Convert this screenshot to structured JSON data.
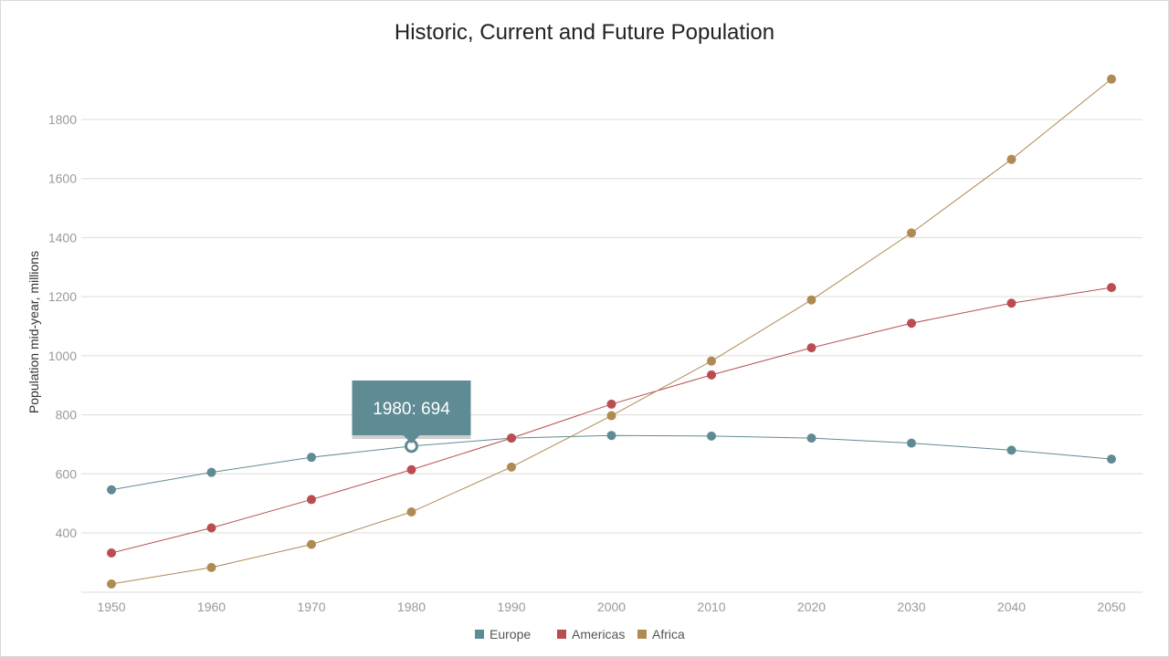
{
  "chart_data": {
    "type": "line",
    "title": "Historic, Current and Future Population",
    "ylabel": "Population mid-year, millions",
    "xlabel": "",
    "categories": [
      "1950",
      "1960",
      "1970",
      "1980",
      "1990",
      "2000",
      "2010",
      "2020",
      "2030",
      "2040",
      "2050"
    ],
    "yticks": [
      400,
      600,
      800,
      1000,
      1200,
      1400,
      1600,
      1800
    ],
    "ylim": [
      220,
      1950
    ],
    "grid": true,
    "legend_position": "bottom-center",
    "series": [
      {
        "name": "Europe",
        "color": "#5f8b95",
        "values": [
          546,
          605,
          656,
          694,
          721,
          730,
          728,
          721,
          704,
          680,
          650
        ]
      },
      {
        "name": "Americas",
        "color": "#ba4d51",
        "values": [
          332,
          417,
          513,
          614,
          721,
          836,
          935,
          1027,
          1110,
          1178,
          1231
        ]
      },
      {
        "name": "Africa",
        "color": "#af8a53",
        "values": [
          227,
          283,
          361,
          471,
          623,
          797,
          982,
          1189,
          1416,
          1665,
          1937
        ]
      }
    ],
    "tooltip": {
      "series": "Europe",
      "category": "1980",
      "value": 694,
      "text": "1980: 694"
    }
  }
}
